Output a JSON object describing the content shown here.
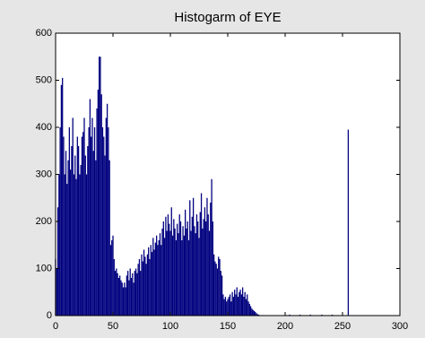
{
  "chart_data": {
    "type": "bar",
    "title": "Histogarm of EYE",
    "color": "#00007f",
    "title_color": "#ff0000",
    "xlim": [
      0,
      300
    ],
    "ylim": [
      0,
      600
    ],
    "xticks": [
      0,
      50,
      100,
      150,
      200,
      250,
      300
    ],
    "yticks": [
      0,
      100,
      200,
      300,
      400,
      500,
      600
    ],
    "x": [
      0,
      1,
      2,
      3,
      4,
      5,
      6,
      7,
      8,
      9,
      10,
      11,
      12,
      13,
      14,
      15,
      16,
      17,
      18,
      19,
      20,
      21,
      22,
      23,
      24,
      25,
      26,
      27,
      28,
      29,
      30,
      31,
      32,
      33,
      34,
      35,
      36,
      37,
      38,
      39,
      40,
      41,
      42,
      43,
      44,
      45,
      46,
      47,
      48,
      49,
      50,
      51,
      52,
      53,
      54,
      55,
      56,
      57,
      58,
      59,
      60,
      61,
      62,
      63,
      64,
      65,
      66,
      67,
      68,
      69,
      70,
      71,
      72,
      73,
      74,
      75,
      76,
      77,
      78,
      79,
      80,
      81,
      82,
      83,
      84,
      85,
      86,
      87,
      88,
      89,
      90,
      91,
      92,
      93,
      94,
      95,
      96,
      97,
      98,
      99,
      100,
      101,
      102,
      103,
      104,
      105,
      106,
      107,
      108,
      109,
      110,
      111,
      112,
      113,
      114,
      115,
      116,
      117,
      118,
      119,
      120,
      121,
      122,
      123,
      124,
      125,
      126,
      127,
      128,
      129,
      130,
      131,
      132,
      133,
      134,
      135,
      136,
      137,
      138,
      139,
      140,
      141,
      142,
      143,
      144,
      145,
      146,
      147,
      148,
      149,
      150,
      151,
      152,
      153,
      154,
      155,
      156,
      157,
      158,
      159,
      160,
      161,
      162,
      163,
      164,
      165,
      166,
      167,
      168,
      169,
      170,
      171,
      172,
      173,
      174,
      175,
      176,
      177,
      178,
      179,
      180,
      181,
      182,
      183,
      184,
      185,
      186,
      187,
      188,
      189,
      190,
      191,
      192,
      193,
      194,
      195,
      196,
      197,
      198,
      199,
      200,
      201,
      202,
      203,
      204,
      205,
      206,
      207,
      208,
      209,
      210,
      211,
      212,
      213,
      214,
      215,
      216,
      217,
      218,
      219,
      220,
      221,
      222,
      223,
      224,
      225,
      226,
      227,
      228,
      229,
      230,
      231,
      232,
      233,
      234,
      235,
      236,
      237,
      238,
      239,
      240,
      241,
      242,
      243,
      244,
      245,
      246,
      247,
      248,
      249,
      250,
      251,
      252,
      253,
      254,
      255
    ],
    "values": [
      120,
      100,
      230,
      300,
      400,
      490,
      505,
      380,
      300,
      350,
      280,
      330,
      400,
      310,
      360,
      420,
      300,
      340,
      290,
      380,
      360,
      300,
      320,
      380,
      390,
      420,
      340,
      300,
      360,
      400,
      460,
      380,
      420,
      350,
      400,
      330,
      440,
      480,
      550,
      550,
      470,
      400,
      380,
      340,
      420,
      450,
      400,
      330,
      150,
      160,
      170,
      120,
      95,
      100,
      90,
      80,
      85,
      75,
      70,
      60,
      70,
      60,
      85,
      95,
      75,
      100,
      80,
      90,
      70,
      95,
      100,
      90,
      110,
      120,
      95,
      130,
      115,
      140,
      125,
      110,
      130,
      145,
      120,
      150,
      135,
      165,
      140,
      155,
      170,
      150,
      160,
      175,
      150,
      185,
      200,
      165,
      210,
      180,
      215,
      195,
      180,
      230,
      170,
      205,
      185,
      160,
      195,
      175,
      215,
      200,
      160,
      190,
      170,
      225,
      185,
      200,
      160,
      245,
      180,
      210,
      250,
      190,
      175,
      215,
      200,
      165,
      220,
      260,
      185,
      205,
      230,
      200,
      250,
      215,
      180,
      240,
      290,
      200,
      130,
      115,
      110,
      100,
      125,
      120,
      95,
      85,
      45,
      35,
      40,
      30,
      35,
      40,
      45,
      30,
      50,
      40,
      55,
      45,
      60,
      40,
      50,
      55,
      45,
      60,
      40,
      50,
      35,
      45,
      30,
      25,
      20,
      15,
      12,
      10,
      8,
      5,
      3,
      2,
      1,
      0,
      0,
      1,
      0,
      0,
      0,
      0,
      0,
      0,
      0,
      0,
      0,
      0,
      0,
      0,
      0,
      0,
      0,
      0,
      0,
      0,
      0,
      0,
      0,
      0,
      2,
      0,
      0,
      0,
      0,
      0,
      0,
      0,
      0,
      2,
      0,
      0,
      0,
      0,
      0,
      0,
      0,
      0,
      2,
      0,
      0,
      0,
      0,
      0,
      0,
      0,
      0,
      0,
      2,
      0,
      0,
      0,
      0,
      0,
      0,
      0,
      0,
      2,
      0,
      0,
      0,
      0,
      0,
      0,
      0,
      0,
      0,
      0,
      0,
      0,
      0,
      395
    ]
  }
}
